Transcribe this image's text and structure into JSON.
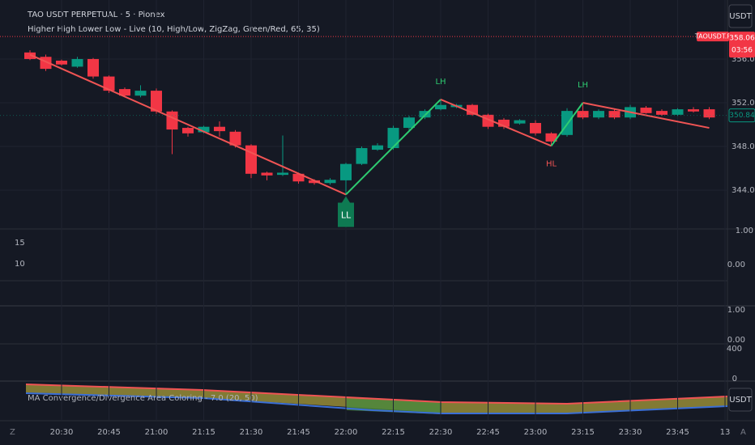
{
  "header": {
    "symbol": "TAO USDT PERPETUAL · 5 · Pionex",
    "indicator": "Higher High Lower Low - Live (10, High/Low, ZigZag, Green/Red, 65, 35)",
    "currency_button": "USDT",
    "bottom_left": "Z",
    "bottom_right": "A"
  },
  "price_tag": {
    "symbol": "TAOUSDT.P",
    "price": 358.06,
    "countdown": "03:56",
    "color": "#f23645"
  },
  "last_tag": {
    "price": 350.84,
    "color": "#089981"
  },
  "chart_data": {
    "type": "candlestick",
    "categories": [
      null,
      null,
      "20:30",
      null,
      null,
      "20:45",
      null,
      null,
      "21:00",
      null,
      null,
      "21:15",
      null,
      null,
      "21:30",
      null,
      null,
      "21:45",
      null,
      null,
      "22:00",
      null,
      null,
      "22:15",
      null,
      null,
      "22:30",
      null,
      null,
      "22:45",
      null,
      null,
      "23:00",
      null,
      null,
      "23:15",
      null,
      null,
      "23:30",
      null,
      null,
      "23:45",
      null,
      null,
      "13"
    ],
    "open": [
      356.6,
      356.2,
      355.85,
      355.3,
      356.0,
      354.4,
      353.25,
      352.65,
      353.1,
      351.2,
      349.7,
      349.3,
      349.8,
      349.35,
      348.1,
      345.6,
      345.4,
      345.5,
      344.9,
      344.65,
      344.9,
      346.4,
      347.7,
      347.85,
      349.7,
      350.65,
      351.4,
      351.6,
      351.8,
      350.9,
      350.45,
      350.1,
      350.15,
      349.2,
      349.05,
      351.25,
      350.65,
      351.25,
      350.65,
      351.55,
      351.25,
      350.9,
      351.4,
      351.4,
      null
    ],
    "high": [
      356.8,
      356.4,
      355.95,
      356.2,
      356.1,
      354.5,
      353.4,
      353.6,
      353.3,
      351.3,
      349.8,
      349.9,
      350.3,
      349.5,
      348.2,
      345.7,
      349.0,
      345.6,
      345.0,
      345.1,
      346.5,
      348.0,
      348.3,
      349.9,
      350.8,
      351.4,
      352.3,
      351.9,
      351.9,
      351.0,
      350.6,
      350.5,
      350.4,
      349.3,
      351.5,
      352.0,
      351.4,
      351.4,
      351.8,
      351.7,
      351.4,
      351.5,
      351.6,
      351.6,
      null
    ],
    "low": [
      355.9,
      354.9,
      355.4,
      355.2,
      354.2,
      352.9,
      352.5,
      352.5,
      351.0,
      347.3,
      348.9,
      349.2,
      348.9,
      347.9,
      345.1,
      344.9,
      345.3,
      344.6,
      344.5,
      344.5,
      343.6,
      346.3,
      347.6,
      347.7,
      349.5,
      350.5,
      351.3,
      351.5,
      350.8,
      349.6,
      349.6,
      350.0,
      349.0,
      348.05,
      348.9,
      350.5,
      350.5,
      350.5,
      350.5,
      351.0,
      350.8,
      350.8,
      351.1,
      350.5,
      null
    ],
    "close": [
      356.0,
      355.1,
      355.5,
      356.0,
      354.4,
      353.1,
      352.65,
      353.1,
      351.2,
      349.55,
      349.2,
      349.8,
      349.4,
      348.1,
      345.5,
      345.35,
      345.6,
      344.8,
      344.65,
      344.95,
      346.4,
      347.85,
      348.1,
      349.7,
      350.65,
      351.25,
      351.8,
      351.8,
      350.9,
      349.8,
      349.8,
      350.4,
      349.2,
      348.45,
      351.25,
      350.65,
      351.25,
      350.65,
      351.6,
      351.05,
      350.9,
      351.4,
      351.2,
      350.65,
      null
    ],
    "up_color": "#089981",
    "down_color": "#f23645",
    "ylim": [
      340.45,
      361.4
    ],
    "yticks": [
      {
        "value": 344,
        "label": "344.00"
      },
      {
        "value": 348,
        "label": "348.00"
      },
      {
        "value": 352,
        "label": "352.00"
      },
      {
        "value": 356,
        "label": "356.00"
      }
    ],
    "grid": true,
    "zigzag": {
      "x": [
        0,
        20,
        26,
        33,
        35,
        43
      ],
      "values": [
        356.4,
        343.6,
        352.3,
        348.05,
        352.0,
        349.7
      ],
      "up_color": "#2ecc71",
      "down_color": "#f05454"
    },
    "pivots": [
      {
        "label": "LL",
        "x": 20,
        "value": 343.6
      },
      {
        "label": "LH",
        "x": 26,
        "value": 352.3
      },
      {
        "label": "HL",
        "x": 33,
        "value": 348.05
      },
      {
        "label": "LH",
        "x": 35,
        "value": 352.0
      }
    ]
  },
  "panes": [
    {
      "left_labels": [
        "15",
        "10"
      ],
      "axis_labels": [
        "1.00",
        "0.00"
      ]
    },
    {
      "axis_labels": [
        "1.00",
        "0.00"
      ]
    },
    {
      "axis_labels": [
        "400",
        "0"
      ]
    },
    {
      "title": "MA Convergence/Divergence Area Coloring - 7.0 (20, 50)",
      "button": "USDT"
    }
  ]
}
